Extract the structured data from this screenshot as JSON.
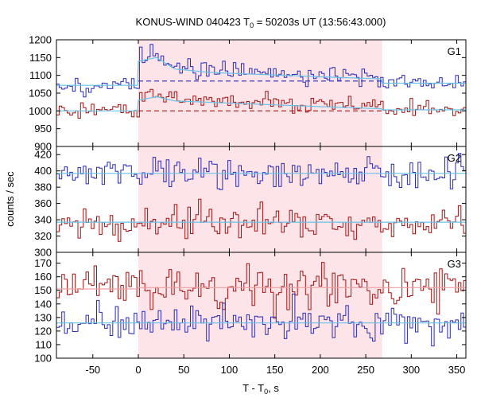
{
  "chart_data": {
    "type": "line",
    "title": {
      "prefix": "KONUS-WIND 040423 T",
      "subscript": "0",
      "suffix": " = 50203s UT (13:56:43.000)"
    },
    "xlabel": {
      "prefix": "T - T",
      "subscript": "0",
      "suffix": ", s"
    },
    "ylabel": "counts / sec",
    "xlim": [
      -90,
      360
    ],
    "xticks": [
      -50,
      0,
      50,
      100,
      150,
      200,
      250,
      300,
      350
    ],
    "bin_width": 2.944,
    "highlight_interval": [
      0,
      268
    ],
    "colors": {
      "blue": "#2a2ab4",
      "red": "#a01414",
      "fit": "#66c2e8",
      "fit_red": "#f0a0a0",
      "band": "#fde4e8"
    },
    "panels": [
      {
        "name": "G1",
        "ylim": [
          900,
          1200
        ],
        "yticks": [
          900,
          950,
          1000,
          1050,
          1100,
          1150,
          1200
        ],
        "series": [
          {
            "color": "blue",
            "level_pre": 1072,
            "level_post": 1078,
            "noise": 12,
            "burst_points": [
              [
                0,
                1150
              ],
              [
                20,
                1160
              ],
              [
                40,
                1125
              ],
              [
                80,
                1115
              ],
              [
                140,
                1108
              ],
              [
                200,
                1100
              ],
              [
                268,
                1092
              ]
            ],
            "fit_line": {
              "pre": 1072,
              "burst_points": [
                [
                  0,
                  1140
                ],
                [
                  20,
                  1150
                ],
                [
                  40,
                  1118
                ],
                [
                  80,
                  1108
                ],
                [
                  140,
                  1102
                ],
                [
                  200,
                  1096
                ],
                [
                  268,
                  1090
                ]
              ],
              "post": 1078
            },
            "dashed_level": 1084
          },
          {
            "color": "red",
            "level_pre": 1000,
            "level_post": 1003,
            "noise": 11,
            "burst_points": [
              [
                0,
                1040
              ],
              [
                20,
                1048
              ],
              [
                40,
                1032
              ],
              [
                80,
                1028
              ],
              [
                140,
                1024
              ],
              [
                200,
                1018
              ],
              [
                268,
                1012
              ]
            ],
            "fit_line": {
              "pre": 1000,
              "burst_points": [
                [
                  0,
                  1030
                ],
                [
                  20,
                  1040
                ],
                [
                  40,
                  1028
                ],
                [
                  80,
                  1024
                ],
                [
                  140,
                  1018
                ],
                [
                  200,
                  1012
                ],
                [
                  268,
                  1006
                ]
              ],
              "post": 1003
            },
            "dashed_level": 1000
          }
        ]
      },
      {
        "name": "G2",
        "ylim": [
          300,
          430
        ],
        "yticks": [
          300,
          320,
          340,
          360,
          380,
          400,
          420
        ],
        "series": [
          {
            "color": "blue",
            "level_pre": 397,
            "level_post": 397,
            "noise": 10,
            "burst_points": [
              [
                0,
                397
              ],
              [
                268,
                397
              ]
            ],
            "fit_line": {
              "pre": 397,
              "burst_points": [
                [
                  0,
                  397
                ],
                [
                  268,
                  397
                ]
              ],
              "post": 397
            }
          },
          {
            "color": "red",
            "level_pre": 337,
            "level_post": 337,
            "noise": 10,
            "burst_points": [
              [
                0,
                337
              ],
              [
                268,
                337
              ]
            ],
            "fit_line": {
              "pre": 337,
              "burst_points": [
                [
                  0,
                  337
                ],
                [
                  268,
                  337
                ]
              ],
              "post": 337
            }
          }
        ]
      },
      {
        "name": "G3",
        "ylim": [
          100,
          178
        ],
        "yticks": [
          100,
          110,
          120,
          130,
          140,
          150,
          160,
          170
        ],
        "series": [
          {
            "color": "red",
            "level_pre": 151,
            "level_post": 152,
            "noise": 8,
            "burst_points": [
              [
                0,
                152
              ],
              [
                268,
                152
              ]
            ],
            "fit_line": {
              "pre": 151,
              "burst_points": [
                [
                  0,
                  152
                ],
                [
                  268,
                  152
                ]
              ],
              "post": 152
            },
            "fit_color": "fit_red"
          },
          {
            "color": "blue",
            "level_pre": 126,
            "level_post": 126,
            "noise": 6,
            "burst_points": [
              [
                0,
                126
              ],
              [
                268,
                126
              ]
            ],
            "fit_line": {
              "pre": 126,
              "burst_points": [
                [
                  0,
                  126
                ],
                [
                  268,
                  126
                ]
              ],
              "post": 126
            }
          }
        ]
      }
    ]
  }
}
